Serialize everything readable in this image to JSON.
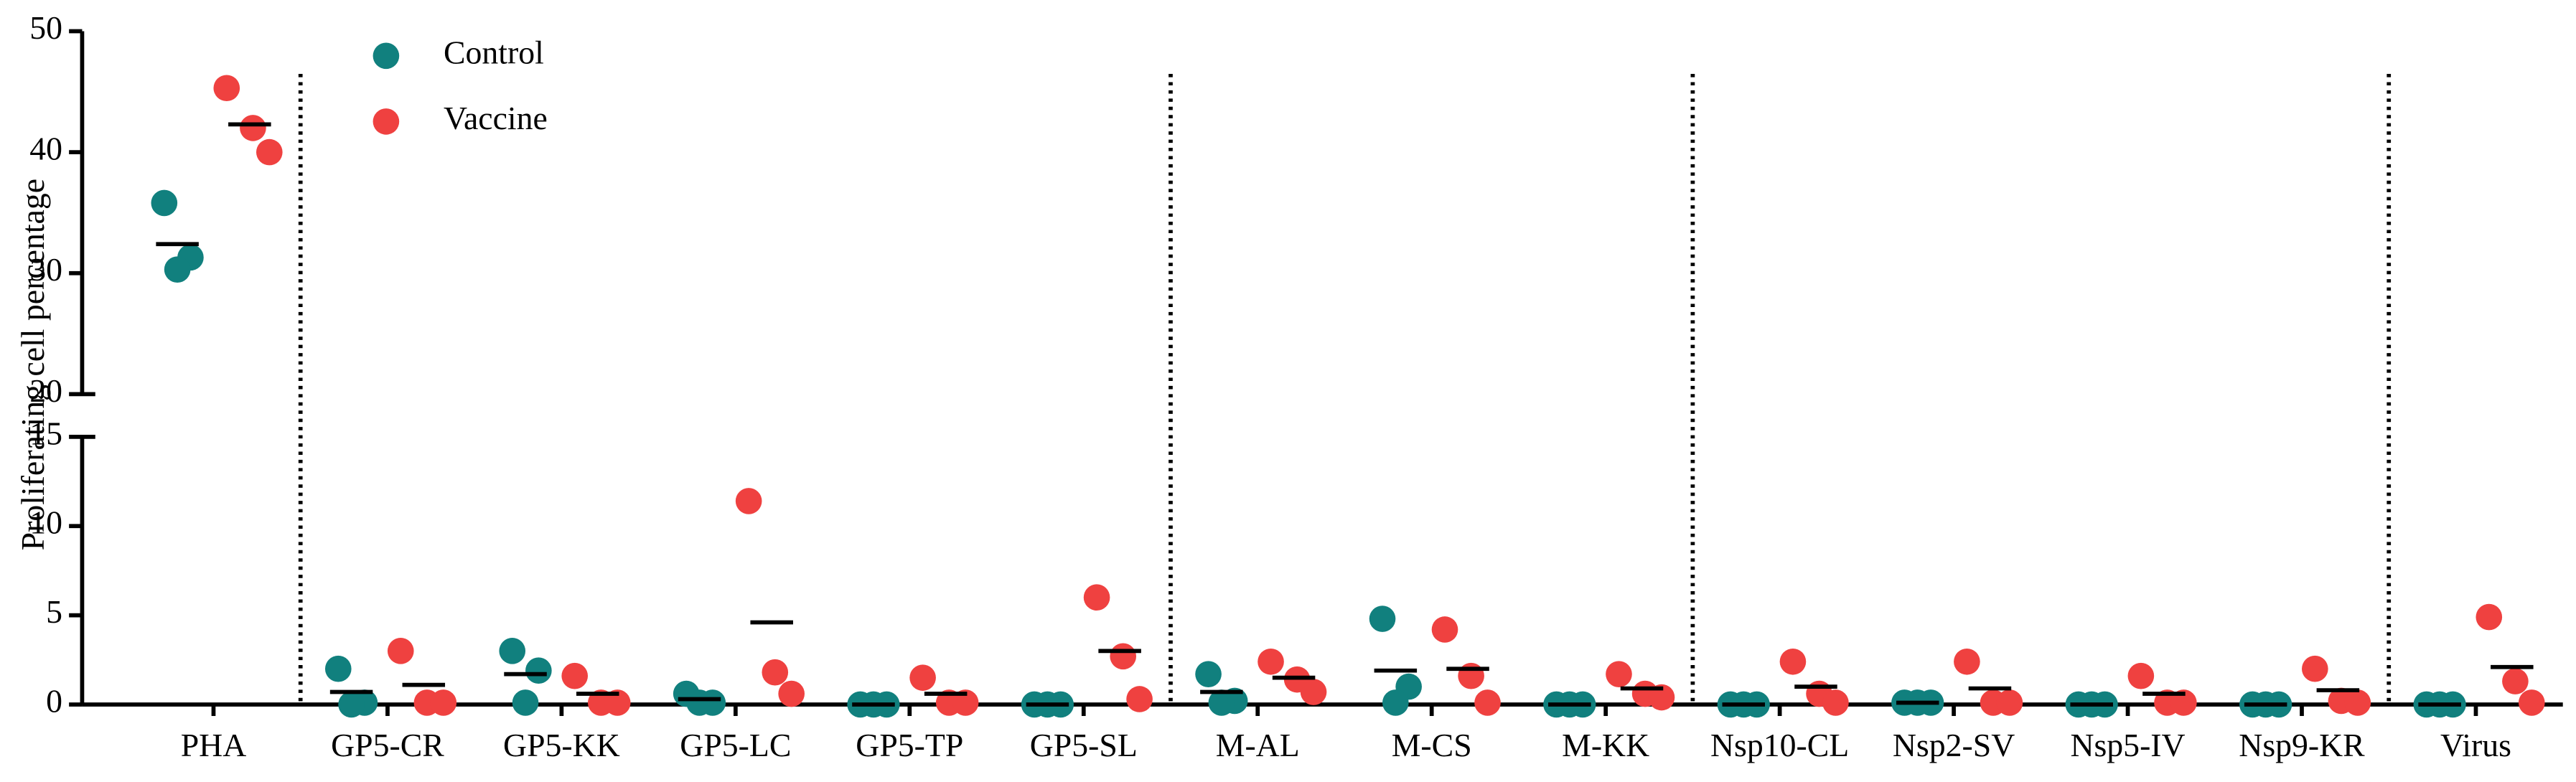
{
  "chart_data": {
    "type": "scatter",
    "y_label": "Proliferating cell percentage",
    "categories": [
      "PHA",
      "GP5-CR",
      "GP5-KK",
      "GP5-LC",
      "GP5-TP",
      "GP5-SL",
      "M-AL",
      "M-CS",
      "M-KK",
      "Nsp10-CL",
      "Nsp2-SV",
      "Nsp5-IV",
      "Nsp9-KR",
      "Virus"
    ],
    "series": [
      {
        "name": "Control",
        "color": "#11807e",
        "values": [
          [
            35.8,
            31.3,
            30.3
          ],
          [
            2.0,
            0.1,
            0.0
          ],
          [
            3.0,
            1.9,
            0.1
          ],
          [
            0.6,
            0.1,
            0.1
          ],
          [
            0,
            0,
            0
          ],
          [
            0,
            0,
            0
          ],
          [
            1.7,
            0.2,
            0.1
          ],
          [
            4.8,
            1.0,
            0.1
          ],
          [
            0,
            0,
            0
          ],
          [
            0,
            0,
            0
          ],
          [
            0.1,
            0.1,
            0.1
          ],
          [
            0,
            0,
            0
          ],
          [
            0,
            0,
            0
          ],
          [
            0,
            0,
            0
          ]
        ],
        "means": [
          32.4,
          0.7,
          1.7,
          0.3,
          0,
          0,
          0.7,
          1.9,
          0,
          0,
          0.1,
          0,
          0,
          0
        ]
      },
      {
        "name": "Vaccine",
        "color": "#ef4140",
        "values": [
          [
            45.3,
            42.0,
            40.0
          ],
          [
            3.0,
            0.1,
            0.1
          ],
          [
            1.6,
            0.1,
            0.1
          ],
          [
            11.4,
            1.8,
            0.6
          ],
          [
            1.5,
            0.1,
            0.1
          ],
          [
            6.0,
            2.7,
            0.3
          ],
          [
            2.4,
            1.4,
            0.7
          ],
          [
            4.2,
            1.6,
            0.1
          ],
          [
            1.7,
            0.6,
            0.4
          ],
          [
            2.4,
            0.6,
            0.1
          ],
          [
            2.4,
            0.1,
            0.1
          ],
          [
            1.6,
            0.1,
            0.1
          ],
          [
            2.0,
            0.2,
            0.1
          ],
          [
            4.9,
            1.3,
            0.1
          ]
        ],
        "means": [
          42.3,
          1.1,
          0.6,
          4.6,
          0.6,
          3.0,
          1.5,
          2.0,
          0.9,
          1.0,
          0.9,
          0.6,
          0.8,
          2.1
        ]
      }
    ],
    "ylim": [
      0,
      50
    ],
    "ybreak": [
      15,
      20
    ],
    "yticks": [
      0,
      5,
      10,
      15,
      20,
      30,
      40,
      50
    ],
    "legend": "upper-left"
  }
}
